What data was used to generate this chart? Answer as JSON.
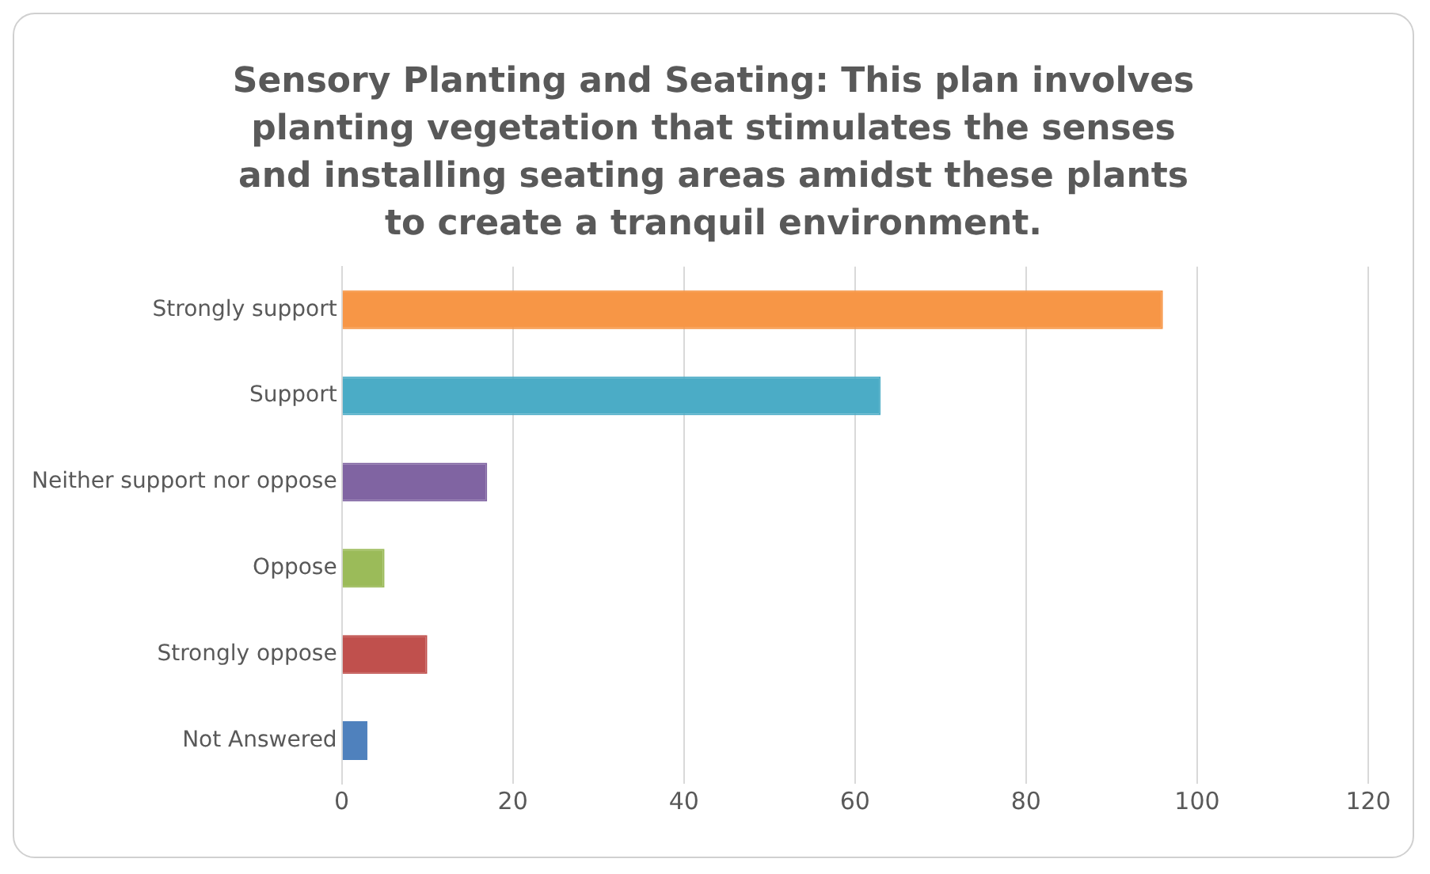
{
  "chart_data": {
    "type": "bar",
    "orientation": "horizontal",
    "title": "Sensory Planting and Seating: This plan involves planting vegetation that stimulates the senses and installing seating areas amidst these plants to create a tranquil environment.",
    "categories": [
      "Strongly support",
      "Support",
      "Neither support nor oppose",
      "Oppose",
      "Strongly oppose",
      "Not Answered"
    ],
    "values": [
      96,
      63,
      17,
      5,
      10,
      3
    ],
    "colors": [
      "#f79646",
      "#4bacc6",
      "#8064a2",
      "#9bbb59",
      "#c0504d",
      "#4f81bd"
    ],
    "xlim": [
      0,
      120
    ],
    "xticks": [
      0,
      20,
      40,
      60,
      80,
      100,
      120
    ],
    "grid": "x",
    "legend": false
  }
}
